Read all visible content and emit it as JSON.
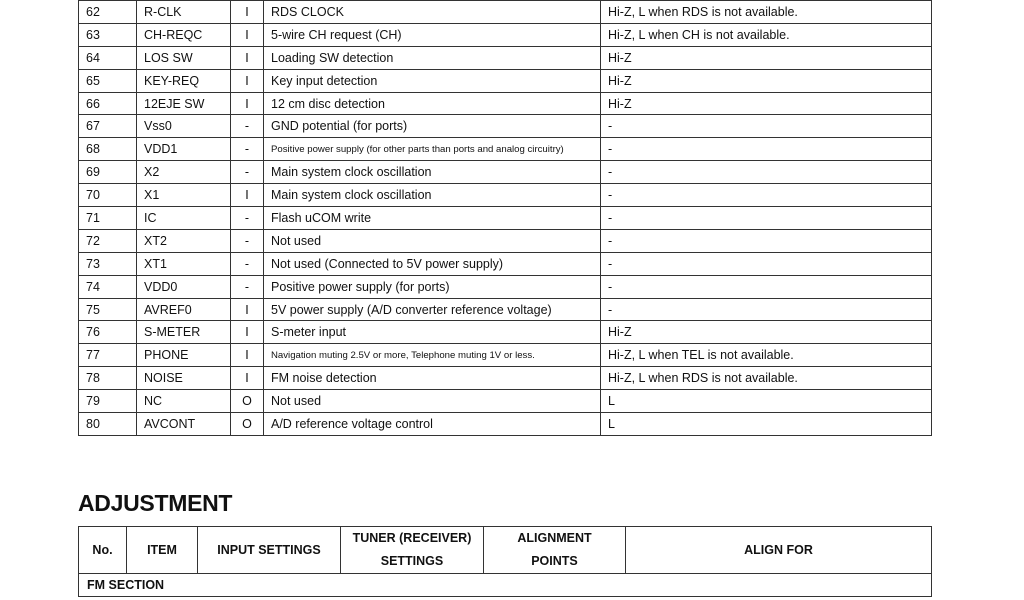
{
  "pin_table": {
    "rows": [
      [
        "62",
        "R-CLK",
        "I",
        "RDS CLOCK",
        "Hi-Z, L when RDS is not available."
      ],
      [
        "63",
        "CH-REQC",
        "I",
        "5-wire CH request (CH)",
        "Hi-Z, L when CH is not available."
      ],
      [
        "64",
        "LOS SW",
        "I",
        "Loading SW detection",
        "Hi-Z"
      ],
      [
        "65",
        "KEY-REQ",
        "I",
        "Key input detection",
        "Hi-Z"
      ],
      [
        "66",
        "12EJE SW",
        "I",
        "12 cm disc detection",
        "Hi-Z"
      ],
      [
        "67",
        "Vss0",
        "-",
        "GND potential (for ports)",
        "-"
      ],
      [
        "68",
        "VDD1",
        "-",
        "Positive power supply (for other parts than ports and analog circuitry)",
        "-"
      ],
      [
        "69",
        "X2",
        "-",
        "Main system clock oscillation",
        "-"
      ],
      [
        "70",
        "X1",
        "I",
        "Main system clock oscillation",
        "-"
      ],
      [
        "71",
        "IC",
        "-",
        "Flash uCOM write",
        "-"
      ],
      [
        "72",
        "XT2",
        "-",
        "Not used",
        "-"
      ],
      [
        "73",
        "XT1",
        "-",
        "Not used (Connected to 5V power supply)",
        "-"
      ],
      [
        "74",
        "VDD0",
        "-",
        "Positive power supply (for ports)",
        "-"
      ],
      [
        "75",
        "AVREF0",
        "I",
        "5V power supply (A/D converter reference voltage)",
        "-"
      ],
      [
        "76",
        "S-METER",
        "I",
        "S-meter input",
        "Hi-Z"
      ],
      [
        "77",
        "PHONE",
        "I",
        "Navigation muting 2.5V or more, Telephone muting 1V or less.",
        "Hi-Z, L when TEL is not available."
      ],
      [
        "78",
        "NOISE",
        "I",
        "FM noise detection",
        "Hi-Z, L when RDS is not available."
      ],
      [
        "79",
        "NC",
        "O",
        "Not used",
        "L"
      ],
      [
        "80",
        "AVCONT",
        "O",
        "A/D reference voltage control",
        "L"
      ]
    ]
  },
  "adjustment": {
    "title": "ADJUSTMENT",
    "headers": [
      "No.",
      "ITEM",
      "INPUT SETTINGS",
      "TUNER (RECEIVER) SETTINGS",
      "ALIGNMENT POINTS",
      "ALIGN FOR"
    ],
    "section": "FM SECTION"
  }
}
